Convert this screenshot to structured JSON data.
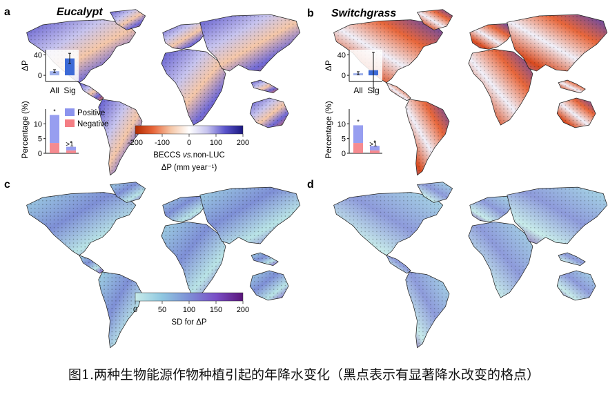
{
  "panels": [
    {
      "letter": "a",
      "title": "Eucalypt"
    },
    {
      "letter": "b",
      "title": "Switchgrass"
    },
    {
      "letter": "c",
      "title": ""
    },
    {
      "letter": "d",
      "title": ""
    }
  ],
  "delta_colorbar": {
    "ticks": [
      "-200",
      "-100",
      "0",
      "100",
      "200"
    ],
    "label_prefix": "BECCS ",
    "label_vs": "vs.",
    "label_suffix": "non-LUC",
    "unit_label": "ΔP (mm year⁻¹)",
    "colors": [
      "#b22a00",
      "#e8663a",
      "#f5c7a8",
      "#ffffff",
      "#c7c4ee",
      "#5b55cc",
      "#1a1780"
    ]
  },
  "sd_colorbar": {
    "ticks": [
      "0",
      "50",
      "100",
      "150",
      "200"
    ],
    "label": "SD for ΔP",
    "colors": [
      "#c8ecea",
      "#8fc7e0",
      "#7e8fd6",
      "#7a4fc7",
      "#5a157a"
    ]
  },
  "inset_labels": {
    "delta_axis": "ΔP",
    "pct_axis": "Percentage (%)",
    "bar_all": "All",
    "bar_sig": "Sig",
    "legend_positive": "Positive",
    "legend_negative": "Negative",
    "bin_label": ">1",
    "sig_marker": "*",
    "yticks_delta": [
      "0",
      "40"
    ],
    "yticks_pct": [
      "0",
      "5",
      "10"
    ]
  },
  "chart_data": [
    {
      "type": "bar",
      "panel": "a",
      "categories": [
        "All",
        "Sig"
      ],
      "values": [
        8,
        33
      ],
      "error": [
        3,
        10
      ],
      "xlabel": "",
      "ylabel": "ΔP",
      "ylim": [
        -12,
        50
      ]
    },
    {
      "type": "bar",
      "panel": "a",
      "categories": [
        "",
        ">1"
      ],
      "series": [
        {
          "name": "Negative",
          "values": [
            3.5,
            1
          ]
        },
        {
          "name": "Positive",
          "values": [
            9.5,
            1.2
          ]
        }
      ],
      "xlabel": "",
      "ylabel": "Percentage (%)",
      "ylim": [
        0,
        15
      ]
    },
    {
      "type": "bar",
      "panel": "b",
      "categories": [
        "All",
        "Sig"
      ],
      "values": [
        4,
        10
      ],
      "error": [
        3,
        35
      ],
      "xlabel": "",
      "ylabel": "ΔP",
      "ylim": [
        -12,
        50
      ]
    },
    {
      "type": "bar",
      "panel": "b",
      "categories": [
        "",
        ">1"
      ],
      "series": [
        {
          "name": "Negative",
          "values": [
            3.5,
            1
          ]
        },
        {
          "name": "Positive",
          "values": [
            6,
            1.5
          ]
        }
      ],
      "xlabel": "",
      "ylabel": "Percentage (%)",
      "ylim": [
        0,
        15
      ]
    }
  ],
  "caption": "图1.两种生物能源作物种植引起的年降水变化（黑点表示有显著降水改变的格点）"
}
